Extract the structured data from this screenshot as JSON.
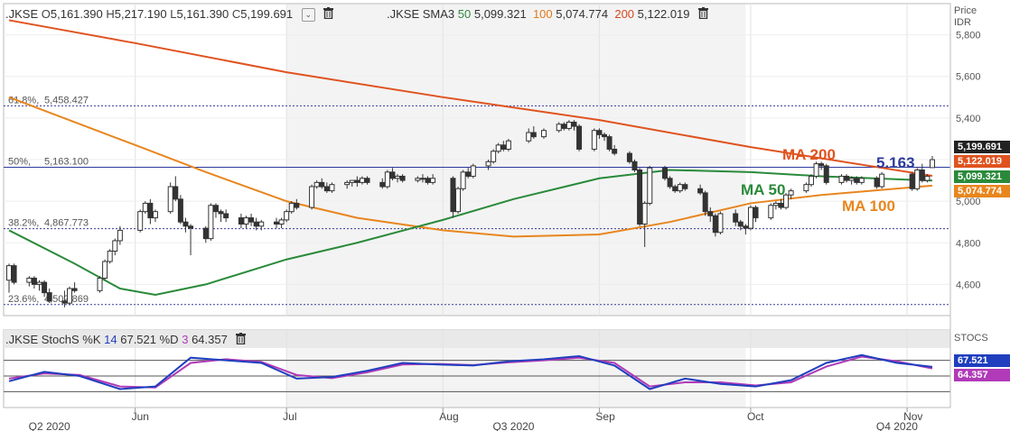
{
  "price_header": {
    "symbol": ".JKSE",
    "open_label": "O",
    "open": "5,161.390",
    "high_label": "H",
    "high": "5,217.190",
    "low_label": "L",
    "low": "5,161.390",
    "close_label": "C",
    "close": "5,199.691",
    "study_name": ".JKSE SMA3",
    "sma50_period": "50",
    "sma50_value": "5,099.321",
    "sma100_period": "100",
    "sma100_value": "5,074.774",
    "sma200_period": "200",
    "sma200_value": "5,122.019"
  },
  "stoch_header": {
    "study_name": ".JKSE StochS",
    "k_label": "%K",
    "k_period": "14",
    "k_value": "67.521",
    "d_label": "%D",
    "d_period": "3",
    "d_value": "64.357"
  },
  "price_axis": {
    "title": "Price",
    "unit": "IDR",
    "ticks": [
      "5,800",
      "5,600",
      "5,400",
      "5,200",
      "5,000",
      "4,800",
      "4,600"
    ]
  },
  "stoch_axis": {
    "title": "STOCS"
  },
  "value_tags": {
    "price": "5,199.691",
    "ma200": "5,122.019",
    "ma50": "5,099.321",
    "ma100": "5,074.774",
    "stoch_k": "67.521",
    "stoch_d": "64.357"
  },
  "annotations": {
    "ma200": "MA 200",
    "ma50": "MA 50",
    "ma100": "MA 100",
    "level_value": "5.163"
  },
  "fib_levels": [
    {
      "label": "61.8%",
      "value": "5,458.427",
      "price": 5458.427
    },
    {
      "label": "50%",
      "value": "5,163.100",
      "price": 5163.1
    },
    {
      "label": "38.2%",
      "value": "4,867.773",
      "price": 4867.773
    },
    {
      "label": "23.6%",
      "value": "4,502.869",
      "price": 4502.869
    }
  ],
  "x_axis": {
    "months": [
      "Jun",
      "Jul",
      "Aug",
      "Sep",
      "Oct",
      "Nov"
    ],
    "quarters": [
      "Q2 2020",
      "Q3 2020",
      "Q4 2020"
    ]
  },
  "colors": {
    "ma200": "#e0531f",
    "ma50": "#2a8a3a",
    "ma100": "#e8861e",
    "stoch_k": "#1f3fbf",
    "stoch_d": "#b03ab8",
    "fib": "#3a3aa0",
    "candle_up": "#ffffff",
    "candle_down": "#333333"
  },
  "chart_data": {
    "type": "candlestick",
    "ylim": [
      4450,
      5950
    ],
    "x_range": [
      "2020-05-07",
      "2020-11-06"
    ],
    "candles": [
      [
        "2020-05-07",
        4620,
        4700,
        4560,
        4690
      ],
      [
        "2020-05-08",
        4690,
        4700,
        4600,
        4610
      ],
      [
        "2020-05-11",
        4610,
        4640,
        4590,
        4630
      ],
      [
        "2020-05-12",
        4630,
        4640,
        4580,
        4600
      ],
      [
        "2020-05-13",
        4600,
        4620,
        4570,
        4610
      ],
      [
        "2020-05-14",
        4610,
        4620,
        4540,
        4560
      ],
      [
        "2020-05-15",
        4560,
        4580,
        4510,
        4520
      ],
      [
        "2020-05-18",
        4520,
        4570,
        4490,
        4510
      ],
      [
        "2020-05-19",
        4510,
        4590,
        4500,
        4580
      ],
      [
        "2020-05-20",
        4580,
        4610,
        4560,
        4570
      ],
      [
        "2020-05-25",
        4570,
        4640,
        4560,
        4630
      ],
      [
        "2020-05-26",
        4630,
        4720,
        4620,
        4710
      ],
      [
        "2020-05-27",
        4710,
        4770,
        4700,
        4760
      ],
      [
        "2020-05-28",
        4760,
        4820,
        4740,
        4810
      ],
      [
        "2020-05-29",
        4810,
        4880,
        4790,
        4860
      ],
      [
        "2020-06-02",
        4860,
        4960,
        4850,
        4950
      ],
      [
        "2020-06-03",
        4950,
        5000,
        4940,
        4990
      ],
      [
        "2020-06-04",
        4990,
        5010,
        4890,
        4920
      ],
      [
        "2020-06-05",
        4920,
        4960,
        4900,
        4950
      ],
      [
        "2020-06-08",
        4950,
        5090,
        4940,
        5070
      ],
      [
        "2020-06-09",
        5070,
        5120,
        5000,
        5010
      ],
      [
        "2020-06-10",
        5010,
        5030,
        4890,
        4900
      ],
      [
        "2020-06-11",
        4900,
        4920,
        4850,
        4880
      ],
      [
        "2020-06-12",
        4880,
        4890,
        4740,
        4870
      ],
      [
        "2020-06-15",
        4870,
        4880,
        4800,
        4820
      ],
      [
        "2020-06-16",
        4820,
        4990,
        4810,
        4980
      ],
      [
        "2020-06-17",
        4980,
        4990,
        4920,
        4950
      ],
      [
        "2020-06-18",
        4950,
        4960,
        4900,
        4940
      ],
      [
        "2020-06-19",
        4940,
        4960,
        4900,
        4920
      ],
      [
        "2020-06-22",
        4920,
        4940,
        4870,
        4890
      ],
      [
        "2020-06-23",
        4890,
        4930,
        4870,
        4920
      ],
      [
        "2020-06-24",
        4920,
        4940,
        4880,
        4900
      ],
      [
        "2020-06-25",
        4900,
        4920,
        4860,
        4880
      ],
      [
        "2020-06-26",
        4880,
        4910,
        4860,
        4900
      ],
      [
        "2020-06-29",
        4900,
        4920,
        4870,
        4890
      ],
      [
        "2020-06-30",
        4890,
        4920,
        4870,
        4910
      ],
      [
        "2020-07-01",
        4910,
        4960,
        4900,
        4950
      ],
      [
        "2020-07-02",
        4950,
        5000,
        4940,
        4990
      ],
      [
        "2020-07-03",
        4990,
        5010,
        4960,
        4970
      ],
      [
        "2020-07-06",
        4970,
        5080,
        4960,
        5070
      ],
      [
        "2020-07-07",
        5070,
        5100,
        5060,
        5090
      ],
      [
        "2020-07-08",
        5090,
        5110,
        5060,
        5070
      ],
      [
        "2020-07-09",
        5070,
        5090,
        5040,
        5050
      ],
      [
        "2020-07-10",
        5050,
        5090,
        5040,
        5080
      ],
      [
        "2020-07-13",
        5080,
        5100,
        5060,
        5090
      ],
      [
        "2020-07-14",
        5090,
        5100,
        5070,
        5100
      ],
      [
        "2020-07-15",
        5100,
        5120,
        5070,
        5090
      ],
      [
        "2020-07-16",
        5090,
        5120,
        5080,
        5110
      ],
      [
        "2020-07-17",
        5110,
        5120,
        5080,
        5090
      ],
      [
        "2020-07-20",
        5090,
        5110,
        5060,
        5070
      ],
      [
        "2020-07-21",
        5070,
        5150,
        5060,
        5140
      ],
      [
        "2020-07-22",
        5140,
        5160,
        5100,
        5110
      ],
      [
        "2020-07-23",
        5110,
        5130,
        5090,
        5120
      ],
      [
        "2020-07-24",
        5120,
        5130,
        5090,
        5100
      ],
      [
        "2020-07-27",
        5100,
        5120,
        5090,
        5110
      ],
      [
        "2020-07-28",
        5110,
        5130,
        5090,
        5110
      ],
      [
        "2020-07-29",
        5110,
        5120,
        5080,
        5090
      ],
      [
        "2020-07-30",
        5090,
        5130,
        5080,
        5110
      ],
      [
        "2020-08-03",
        5110,
        5120,
        4920,
        4950
      ],
      [
        "2020-08-04",
        4950,
        5070,
        4940,
        5060
      ],
      [
        "2020-08-05",
        5060,
        5150,
        5050,
        5140
      ],
      [
        "2020-08-06",
        5140,
        5160,
        5110,
        5120
      ],
      [
        "2020-08-07",
        5120,
        5180,
        5110,
        5170
      ],
      [
        "2020-08-10",
        5170,
        5200,
        5150,
        5190
      ],
      [
        "2020-08-11",
        5190,
        5250,
        5180,
        5240
      ],
      [
        "2020-08-12",
        5240,
        5280,
        5230,
        5270
      ],
      [
        "2020-08-13",
        5270,
        5290,
        5240,
        5250
      ],
      [
        "2020-08-14",
        5250,
        5300,
        5240,
        5290
      ],
      [
        "2020-08-18",
        5290,
        5350,
        5280,
        5330
      ],
      [
        "2020-08-19",
        5330,
        5360,
        5300,
        5310
      ],
      [
        "2020-08-21",
        5310,
        5350,
        5300,
        5340
      ],
      [
        "2020-08-24",
        5340,
        5380,
        5330,
        5370
      ],
      [
        "2020-08-25",
        5370,
        5380,
        5340,
        5350
      ],
      [
        "2020-08-26",
        5350,
        5390,
        5340,
        5380
      ],
      [
        "2020-08-27",
        5380,
        5390,
        5340,
        5360
      ],
      [
        "2020-08-28",
        5360,
        5370,
        5240,
        5250
      ],
      [
        "2020-08-31",
        5250,
        5350,
        5240,
        5340
      ],
      [
        "2020-09-01",
        5340,
        5350,
        5300,
        5320
      ],
      [
        "2020-09-02",
        5320,
        5330,
        5290,
        5310
      ],
      [
        "2020-09-03",
        5310,
        5320,
        5240,
        5250
      ],
      [
        "2020-09-04",
        5250,
        5270,
        5220,
        5230
      ],
      [
        "2020-09-07",
        5230,
        5240,
        5180,
        5190
      ],
      [
        "2020-09-08",
        5190,
        5200,
        5140,
        5150
      ],
      [
        "2020-09-09",
        5150,
        5160,
        4880,
        4890
      ],
      [
        "2020-09-10",
        4890,
        5000,
        4780,
        4990
      ],
      [
        "2020-09-11",
        4990,
        5170,
        4980,
        5160
      ],
      [
        "2020-09-14",
        5160,
        5170,
        5100,
        5110
      ],
      [
        "2020-09-15",
        5110,
        5120,
        5060,
        5070
      ],
      [
        "2020-09-16",
        5070,
        5080,
        5040,
        5050
      ],
      [
        "2020-09-17",
        5050,
        5090,
        5040,
        5080
      ],
      [
        "2020-09-18",
        5080,
        5090,
        5050,
        5060
      ],
      [
        "2020-09-21",
        5060,
        5080,
        5030,
        5040
      ],
      [
        "2020-09-22",
        5040,
        5050,
        4930,
        4950
      ],
      [
        "2020-09-23",
        4950,
        4970,
        4900,
        4930
      ],
      [
        "2020-09-24",
        4930,
        4940,
        4830,
        4850
      ],
      [
        "2020-09-25",
        4850,
        4950,
        4840,
        4940
      ],
      [
        "2020-09-28",
        4940,
        4960,
        4880,
        4900
      ],
      [
        "2020-09-29",
        4900,
        4910,
        4860,
        4880
      ],
      [
        "2020-09-30",
        4880,
        4890,
        4840,
        4870
      ],
      [
        "2020-10-01",
        4870,
        4980,
        4860,
        4970
      ],
      [
        "2020-10-02",
        4970,
        4980,
        4900,
        4920
      ],
      [
        "2020-10-05",
        4920,
        4990,
        4910,
        4980
      ],
      [
        "2020-10-06",
        4980,
        5000,
        4960,
        4990
      ],
      [
        "2020-10-07",
        4990,
        5010,
        4960,
        4970
      ],
      [
        "2020-10-08",
        4970,
        5040,
        4960,
        5030
      ],
      [
        "2020-10-09",
        5030,
        5060,
        5010,
        5050
      ],
      [
        "2020-10-12",
        5050,
        5090,
        5040,
        5080
      ],
      [
        "2020-10-13",
        5080,
        5130,
        5070,
        5120
      ],
      [
        "2020-10-14",
        5120,
        5190,
        5110,
        5180
      ],
      [
        "2020-10-15",
        5180,
        5190,
        5150,
        5170
      ],
      [
        "2020-10-16",
        5170,
        5180,
        5080,
        5090
      ],
      [
        "2020-10-19",
        5090,
        5130,
        5080,
        5120
      ],
      [
        "2020-10-20",
        5120,
        5130,
        5090,
        5100
      ],
      [
        "2020-10-21",
        5100,
        5120,
        5080,
        5110
      ],
      [
        "2020-10-22",
        5110,
        5120,
        5080,
        5090
      ],
      [
        "2020-10-23",
        5090,
        5120,
        5080,
        5110
      ],
      [
        "2020-10-26",
        5110,
        5120,
        5060,
        5070
      ],
      [
        "2020-10-27",
        5070,
        5140,
        5060,
        5130
      ],
      [
        "2020-11-02",
        5130,
        5140,
        5050,
        5060
      ],
      [
        "2020-11-03",
        5060,
        5160,
        5050,
        5150
      ],
      [
        "2020-11-04",
        5150,
        5180,
        5090,
        5100
      ],
      [
        "2020-11-05",
        5100,
        5130,
        5090,
        5120
      ],
      [
        "2020-11-06",
        5161.39,
        5217.19,
        5161.39,
        5199.691
      ]
    ],
    "series": [
      {
        "key": "ma200",
        "name": "200",
        "points": [
          [
            "2020-05-07",
            5870
          ],
          [
            "2020-06-01",
            5760
          ],
          [
            "2020-07-01",
            5620
          ],
          [
            "2020-08-01",
            5500
          ],
          [
            "2020-09-01",
            5390
          ],
          [
            "2020-10-01",
            5260
          ],
          [
            "2020-11-06",
            5122
          ]
        ]
      },
      {
        "key": "ma100",
        "name": "100",
        "points": [
          [
            "2020-05-07",
            5500
          ],
          [
            "2020-05-20",
            5380
          ],
          [
            "2020-06-01",
            5270
          ],
          [
            "2020-06-15",
            5140
          ],
          [
            "2020-07-01",
            5000
          ],
          [
            "2020-07-15",
            4920
          ],
          [
            "2020-08-01",
            4860
          ],
          [
            "2020-08-15",
            4830
          ],
          [
            "2020-09-01",
            4840
          ],
          [
            "2020-09-15",
            4900
          ],
          [
            "2020-10-01",
            4990
          ],
          [
            "2020-10-15",
            5030
          ],
          [
            "2020-11-06",
            5075
          ]
        ]
      },
      {
        "key": "ma50",
        "name": "50",
        "points": [
          [
            "2020-05-07",
            4860
          ],
          [
            "2020-05-20",
            4700
          ],
          [
            "2020-05-29",
            4580
          ],
          [
            "2020-06-05",
            4550
          ],
          [
            "2020-06-15",
            4600
          ],
          [
            "2020-07-01",
            4720
          ],
          [
            "2020-07-15",
            4800
          ],
          [
            "2020-08-01",
            4910
          ],
          [
            "2020-08-15",
            5010
          ],
          [
            "2020-09-01",
            5110
          ],
          [
            "2020-09-15",
            5150
          ],
          [
            "2020-10-01",
            5140
          ],
          [
            "2020-10-15",
            5120
          ],
          [
            "2020-11-06",
            5099
          ]
        ]
      }
    ],
    "stochastic": {
      "ylim": [
        0,
        100
      ],
      "k": [
        [
          "2020-05-07",
          40
        ],
        [
          "2020-05-14",
          58
        ],
        [
          "2020-05-21",
          50
        ],
        [
          "2020-05-29",
          25
        ],
        [
          "2020-06-05",
          30
        ],
        [
          "2020-06-12",
          85
        ],
        [
          "2020-06-19",
          80
        ],
        [
          "2020-06-26",
          75
        ],
        [
          "2020-07-03",
          45
        ],
        [
          "2020-07-10",
          48
        ],
        [
          "2020-07-17",
          60
        ],
        [
          "2020-07-24",
          75
        ],
        [
          "2020-07-31",
          72
        ],
        [
          "2020-08-07",
          70
        ],
        [
          "2020-08-14",
          78
        ],
        [
          "2020-08-21",
          82
        ],
        [
          "2020-08-28",
          88
        ],
        [
          "2020-09-04",
          70
        ],
        [
          "2020-09-11",
          25
        ],
        [
          "2020-09-18",
          45
        ],
        [
          "2020-09-25",
          35
        ],
        [
          "2020-10-02",
          30
        ],
        [
          "2020-10-09",
          42
        ],
        [
          "2020-10-16",
          75
        ],
        [
          "2020-10-23",
          90
        ],
        [
          "2020-10-30",
          75
        ],
        [
          "2020-11-06",
          67.521
        ]
      ],
      "d": [
        [
          "2020-05-07",
          45
        ],
        [
          "2020-05-14",
          55
        ],
        [
          "2020-05-21",
          52
        ],
        [
          "2020-05-29",
          30
        ],
        [
          "2020-06-05",
          28
        ],
        [
          "2020-06-12",
          75
        ],
        [
          "2020-06-19",
          82
        ],
        [
          "2020-06-26",
          77
        ],
        [
          "2020-07-03",
          52
        ],
        [
          "2020-07-10",
          46
        ],
        [
          "2020-07-17",
          57
        ],
        [
          "2020-07-24",
          72
        ],
        [
          "2020-07-31",
          73
        ],
        [
          "2020-08-07",
          71
        ],
        [
          "2020-08-14",
          76
        ],
        [
          "2020-08-21",
          80
        ],
        [
          "2020-08-28",
          85
        ],
        [
          "2020-09-04",
          75
        ],
        [
          "2020-09-11",
          30
        ],
        [
          "2020-09-18",
          38
        ],
        [
          "2020-09-25",
          38
        ],
        [
          "2020-10-02",
          32
        ],
        [
          "2020-10-09",
          38
        ],
        [
          "2020-10-16",
          68
        ],
        [
          "2020-10-23",
          87
        ],
        [
          "2020-10-30",
          78
        ],
        [
          "2020-11-06",
          64.357
        ]
      ]
    }
  }
}
